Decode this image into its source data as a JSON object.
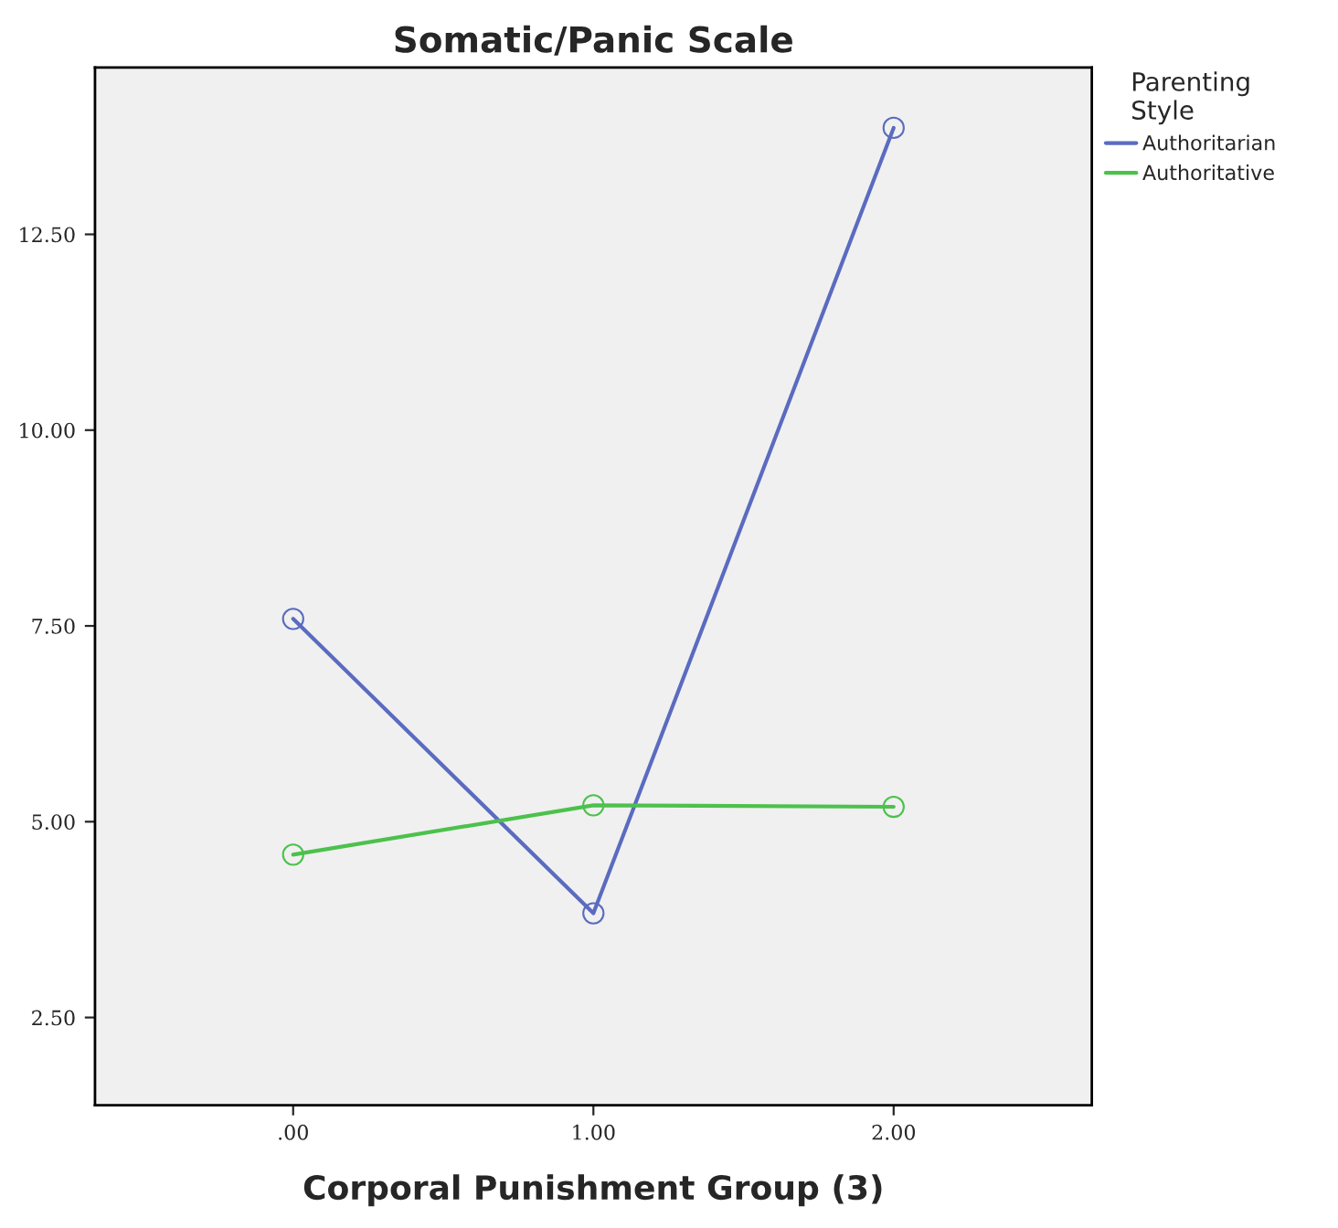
{
  "chart_data": {
    "type": "line",
    "title": "Somatic/Panic Scale",
    "xlabel": "Corporal Punishment Group (3)",
    "legend_title": "Parenting\nStyle",
    "x": [
      0,
      1,
      2
    ],
    "series": [
      {
        "name": "Authoritarian",
        "color": "#5a6bc0",
        "values": [
          7.59,
          3.83,
          13.86
        ]
      },
      {
        "name": "Authoritative",
        "color": "#4cc14c",
        "values": [
          4.58,
          5.21,
          5.19
        ]
      }
    ],
    "xlim": [
      -0.66,
      2.66
    ],
    "xticks": [
      {
        "value": 0,
        "label": ".00"
      },
      {
        "value": 1,
        "label": "1.00"
      },
      {
        "value": 2,
        "label": "2.00"
      }
    ],
    "ylim": [
      1.38,
      14.63
    ],
    "yticks": [
      {
        "value": 2.5,
        "label": "2.50"
      },
      {
        "value": 5,
        "label": "5.00"
      },
      {
        "value": 7.5,
        "label": "7.50"
      },
      {
        "value": 10,
        "label": "10.00"
      },
      {
        "value": 12.5,
        "label": "12.50"
      }
    ],
    "grid": false,
    "legend": "right",
    "marker": "circle",
    "line_style": "solid"
  }
}
